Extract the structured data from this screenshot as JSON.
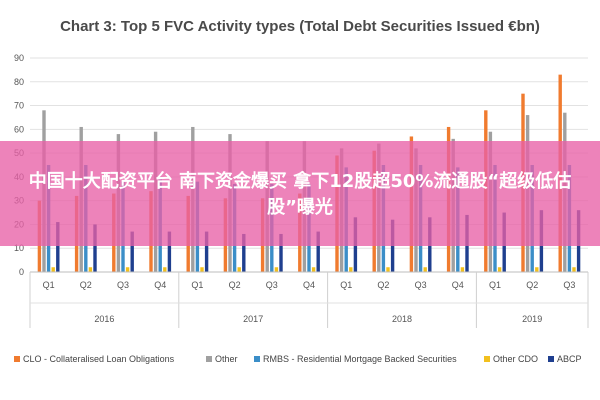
{
  "chart_data": {
    "type": "bar",
    "title": "Chart 3: Top 5 FVC Activity types (Total Debt Securities Issued €bn)",
    "xlabel": "",
    "ylabel": "",
    "ylim": [
      0,
      90
    ],
    "yticks": [
      0,
      10,
      20,
      30,
      40,
      50,
      60,
      70,
      80,
      90
    ],
    "grid": true,
    "legend_position": "bottom",
    "categories": [
      "Q1",
      "Q2",
      "Q3",
      "Q4",
      "Q1",
      "Q2",
      "Q3",
      "Q4",
      "Q1",
      "Q2",
      "Q3",
      "Q4",
      "Q1",
      "Q2",
      "Q3"
    ],
    "year_groups": [
      {
        "label": "2016",
        "span": 4
      },
      {
        "label": "2017",
        "span": 4
      },
      {
        "label": "2018",
        "span": 4
      },
      {
        "label": "2019",
        "span": 3
      }
    ],
    "series": [
      {
        "name": "CLO - Collateralised Loan Obligations",
        "color": "#f07b2f",
        "values": [
          30,
          32,
          33,
          34,
          32,
          31,
          31,
          33,
          49,
          51,
          57,
          61,
          68,
          75,
          83
        ]
      },
      {
        "name": "Other",
        "color": "#a0a0a0",
        "values": [
          68,
          61,
          58,
          59,
          61,
          58,
          55,
          55,
          52,
          54,
          52,
          56,
          59,
          66,
          67
        ]
      },
      {
        "name": "RMBS - Residential Mortgage Backed Securities",
        "color": "#3b8ec8",
        "values": [
          45,
          45,
          38,
          40,
          38,
          37,
          37,
          37,
          44,
          45,
          45,
          44,
          45,
          45,
          45
        ]
      },
      {
        "name": "Other CDO",
        "color": "#f2c01e",
        "values": [
          2,
          2,
          2,
          2,
          2,
          2,
          2,
          2,
          2,
          2,
          2,
          2,
          2,
          2,
          2
        ]
      },
      {
        "name": "ABCP",
        "color": "#1f3f8f",
        "values": [
          21,
          20,
          17,
          17,
          17,
          16,
          16,
          17,
          23,
          22,
          23,
          24,
          25,
          26,
          26
        ]
      }
    ]
  },
  "overlay": {
    "text": "中国十大配资平台 南下资金爆买 拿下12股超50%流通股“超级低估股”曝光"
  }
}
